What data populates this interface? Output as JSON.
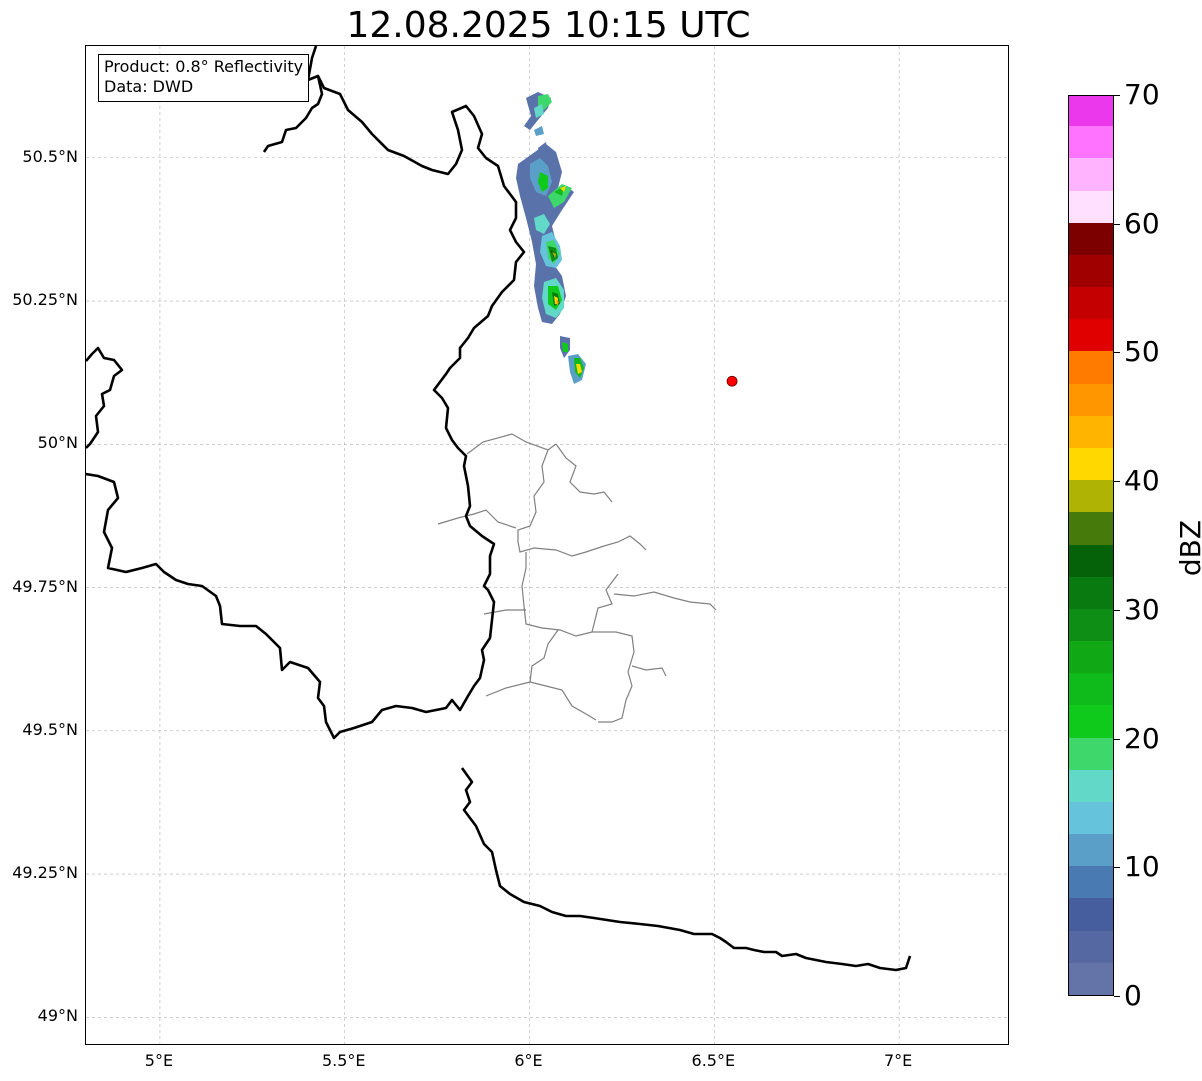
{
  "title": "12.08.2025 10:15 UTC",
  "info": {
    "product": "Product: 0.8° Reflectivity",
    "source": "Data: DWD"
  },
  "map": {
    "lon_range": [
      4.8,
      7.3
    ],
    "lat_range": [
      48.95,
      50.695
    ],
    "lat_ticks": [
      {
        "value": 50.5,
        "label": "50.5°N"
      },
      {
        "value": 50.25,
        "label": "50.25°N"
      },
      {
        "value": 50.0,
        "label": "50°N"
      },
      {
        "value": 49.75,
        "label": "49.75°N"
      },
      {
        "value": 49.5,
        "label": "49.5°N"
      },
      {
        "value": 49.25,
        "label": "49.25°N"
      },
      {
        "value": 49.0,
        "label": "49°N"
      }
    ],
    "lon_ticks": [
      {
        "value": 5.0,
        "label": "5°E"
      },
      {
        "value": 5.5,
        "label": "5.5°E"
      },
      {
        "value": 6.0,
        "label": "6°E"
      },
      {
        "value": 6.5,
        "label": "6.5°E"
      },
      {
        "value": 7.0,
        "label": "7°E"
      }
    ],
    "grid": true,
    "radar_site": {
      "lon": 6.548,
      "lat": 50.11,
      "color": "#ff0000"
    }
  },
  "colorbar": {
    "unit": "dBZ",
    "range": [
      0,
      70
    ],
    "tick_labels": [
      {
        "value": 0,
        "label": "0"
      },
      {
        "value": 10,
        "label": "10"
      },
      {
        "value": 20,
        "label": "20"
      },
      {
        "value": 30,
        "label": "30"
      },
      {
        "value": 40,
        "label": "40"
      },
      {
        "value": 50,
        "label": "50"
      },
      {
        "value": 60,
        "label": "60"
      },
      {
        "value": 70,
        "label": "70"
      }
    ],
    "colors": [
      "#6574a8",
      "#5668a2",
      "#465e9e",
      "#4a7ab2",
      "#5a9fc8",
      "#65c3dc",
      "#62d9c8",
      "#3ed76c",
      "#0fca1a",
      "#0fbb1a",
      "#10a814",
      "#0e8e14",
      "#087a10",
      "#056208",
      "#467a0a",
      "#aeb304",
      "#ffd800",
      "#ffb500",
      "#ff9600",
      "#ff7b00",
      "#e00000",
      "#c40000",
      "#a00000",
      "#7c0000",
      "#ffe0ff",
      "#ffb3ff",
      "#ff73ff",
      "#ec38ec"
    ]
  }
}
